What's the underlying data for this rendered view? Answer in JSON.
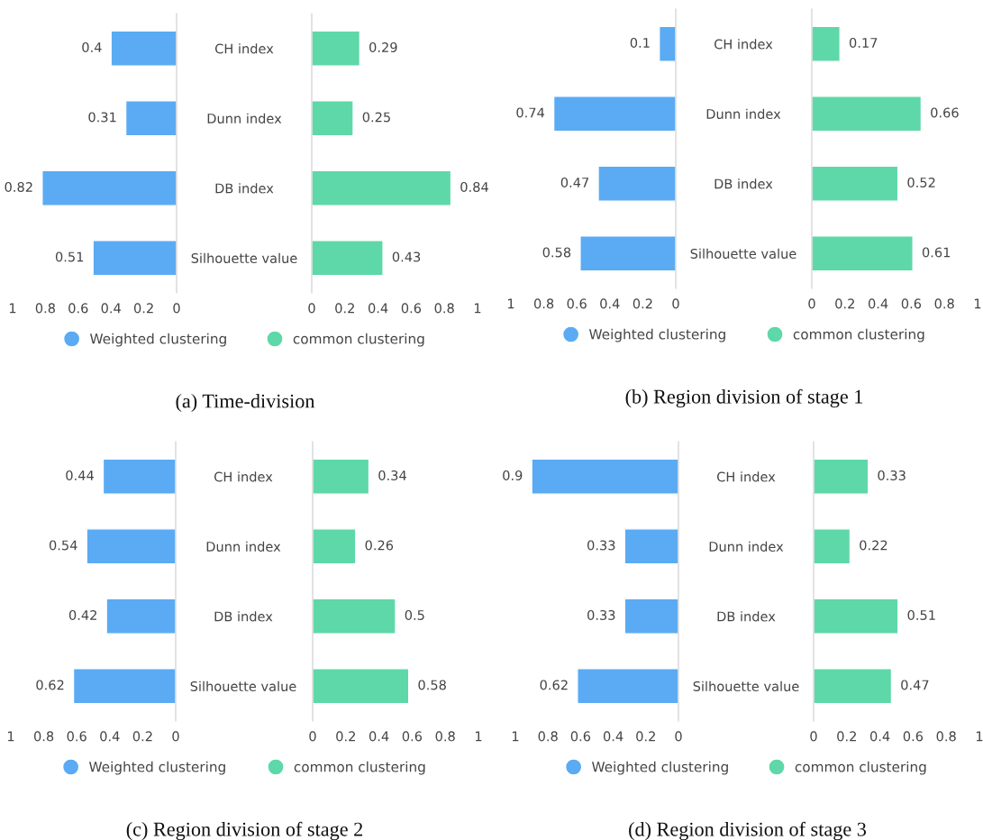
{
  "chart_data": [
    {
      "type": "bar",
      "orientation": "horizontal",
      "categories": [
        "CH index",
        "Dunn index",
        "DB index",
        "Silhouette value"
      ],
      "series": [
        {
          "name": "Weighted clustering",
          "color": "#5aabf3",
          "values": [
            0.4,
            0.31,
            0.82,
            0.51
          ]
        }
      ],
      "xlim": [
        1,
        0
      ],
      "xticks": [
        1,
        0.8,
        0.6,
        0.4,
        0.2,
        0
      ],
      "data_labels": true,
      "legend": "bottom",
      "grid": false,
      "annotations": [
        "(a) Time-division"
      ]
    },
    {
      "type": "bar",
      "orientation": "horizontal",
      "categories": [
        null,
        null,
        null,
        null
      ],
      "series": [
        {
          "name": "common clustering",
          "color": "#5ed8a8",
          "values": [
            0.29,
            0.25,
            0.84,
            0.43
          ]
        }
      ],
      "xlim": [
        0,
        1
      ],
      "xticks": [
        0,
        0.2,
        0.4,
        0.6,
        0.8,
        1
      ],
      "data_labels": true,
      "legend": "bottom",
      "grid": false
    },
    {
      "type": "bar",
      "orientation": "horizontal",
      "categories": [
        "CH index",
        "Dunn index",
        "DB index",
        "Silhouette value"
      ],
      "series": [
        {
          "name": "Weighted clustering",
          "color": "#5aabf3",
          "values": [
            0.1,
            0.74,
            0.47,
            0.58
          ]
        }
      ],
      "xlim": [
        1,
        0
      ],
      "xticks": [
        1,
        0.8,
        0.6,
        0.4,
        0.2,
        0
      ],
      "data_labels": true,
      "legend": "bottom",
      "grid": false,
      "annotations": [
        "(b) Region division of stage 1"
      ]
    },
    {
      "type": "bar",
      "orientation": "horizontal",
      "categories": [
        null,
        null,
        null,
        null
      ],
      "series": [
        {
          "name": "common clustering",
          "color": "#5ed8a8",
          "values": [
            0.17,
            0.66,
            0.52,
            0.61
          ]
        }
      ],
      "xlim": [
        0,
        1
      ],
      "xticks": [
        0,
        0.2,
        0.4,
        0.6,
        0.8,
        1
      ],
      "data_labels": true,
      "legend": "bottom",
      "grid": false
    },
    {
      "type": "bar",
      "orientation": "horizontal",
      "categories": [
        "CH index",
        "Dunn index",
        "DB index",
        "Silhouette value"
      ],
      "series": [
        {
          "name": "Weighted clustering",
          "color": "#5aabf3",
          "values": [
            0.44,
            0.54,
            0.42,
            0.62
          ]
        }
      ],
      "xlim": [
        1,
        0
      ],
      "xticks": [
        1,
        0.8,
        0.6,
        0.4,
        0.2,
        0
      ],
      "data_labels": true,
      "legend": "bottom",
      "grid": false,
      "annotations": [
        "(c) Region division of stage 2"
      ]
    },
    {
      "type": "bar",
      "orientation": "horizontal",
      "categories": [
        null,
        null,
        null,
        null
      ],
      "series": [
        {
          "name": "common clustering",
          "color": "#5ed8a8",
          "values": [
            0.34,
            0.26,
            0.5,
            0.58
          ]
        }
      ],
      "xlim": [
        0,
        1
      ],
      "xticks": [
        0,
        0.2,
        0.4,
        0.6,
        0.8,
        1
      ],
      "data_labels": true,
      "legend": "bottom",
      "grid": false
    },
    {
      "type": "bar",
      "orientation": "horizontal",
      "categories": [
        "CH index",
        "Dunn index",
        "DB index",
        "Silhouette value"
      ],
      "series": [
        {
          "name": "Weighted clustering",
          "color": "#5aabf3",
          "values": [
            0.9,
            0.33,
            0.33,
            0.62
          ]
        }
      ],
      "xlim": [
        1,
        0
      ],
      "xticks": [
        1,
        0.8,
        0.6,
        0.4,
        0.2,
        0
      ],
      "data_labels": true,
      "legend": "bottom",
      "grid": false,
      "annotations": [
        "(d) Region division of stage 3"
      ]
    },
    {
      "type": "bar",
      "orientation": "horizontal",
      "categories": [
        null,
        null,
        null,
        null
      ],
      "series": [
        {
          "name": "common clustering",
          "color": "#5ed8a8",
          "values": [
            0.33,
            0.22,
            0.51,
            0.47
          ]
        }
      ],
      "xlim": [
        0,
        1
      ],
      "xticks": [
        0,
        0.2,
        0.4,
        0.6,
        0.8,
        1
      ],
      "data_labels": true,
      "legend": "bottom",
      "grid": false
    }
  ]
}
